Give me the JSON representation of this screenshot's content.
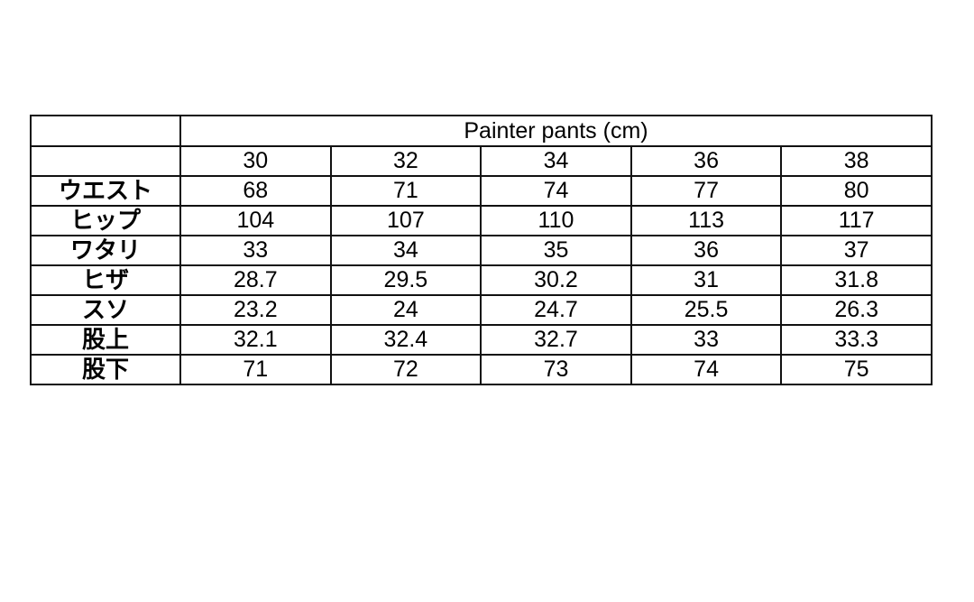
{
  "table": {
    "title": "Painter pants (cm)",
    "sizes": [
      "30",
      "32",
      "34",
      "36",
      "38"
    ],
    "rows": [
      {
        "label": "ウエスト",
        "values": [
          "68",
          "71",
          "74",
          "77",
          "80"
        ]
      },
      {
        "label": "ヒップ",
        "values": [
          "104",
          "107",
          "110",
          "113",
          "117"
        ]
      },
      {
        "label": "ワタリ",
        "values": [
          "33",
          "34",
          "35",
          "36",
          "37"
        ]
      },
      {
        "label": "ヒザ",
        "values": [
          "28.7",
          "29.5",
          "30.2",
          "31",
          "31.8"
        ]
      },
      {
        "label": "スソ",
        "values": [
          "23.2",
          "24",
          "24.7",
          "25.5",
          "26.3"
        ]
      },
      {
        "label": "股上",
        "values": [
          "32.1",
          "32.4",
          "32.7",
          "33",
          "33.3"
        ]
      },
      {
        "label": "股下",
        "values": [
          "71",
          "72",
          "73",
          "74",
          "75"
        ]
      }
    ]
  }
}
